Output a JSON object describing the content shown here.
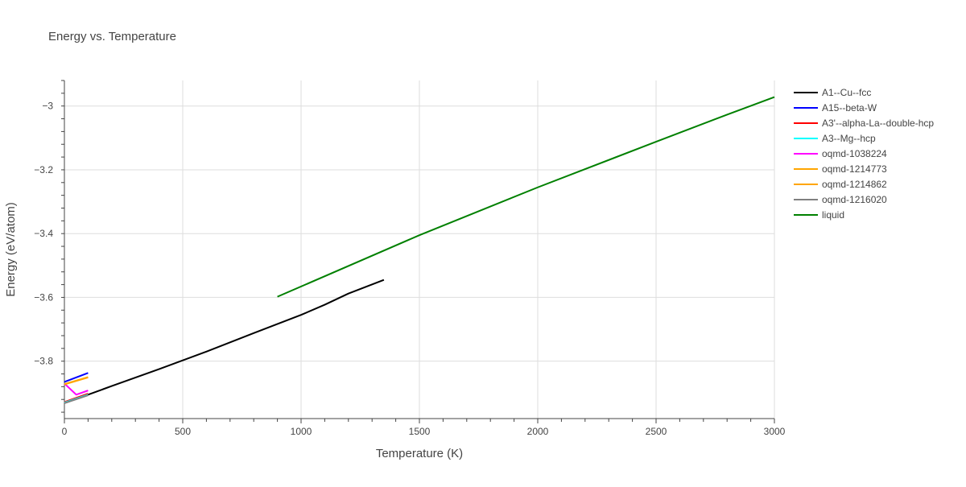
{
  "chart_data": {
    "type": "line",
    "title": "Energy vs. Temperature",
    "xlabel": "Temperature (K)",
    "ylabel": "Energy (eV/atom)",
    "xlim": [
      0,
      3000
    ],
    "ylim": [
      -3.98,
      -2.92
    ],
    "xticks": [
      0,
      500,
      1000,
      1500,
      2000,
      2500,
      3000
    ],
    "yticks": [
      -3.8,
      -3.6,
      -3.4,
      -3.2,
      -3.0
    ],
    "yticklabels": [
      "−3.8",
      "−3.6",
      "−3.4",
      "−3.2",
      "−3"
    ],
    "grid": true,
    "legend_position": "right",
    "series": [
      {
        "name": "A1--Cu--fcc",
        "color": "#000000",
        "x": [
          0,
          100,
          200,
          400,
          600,
          800,
          1000,
          1100,
          1200,
          1350
        ],
        "y": [
          -3.93,
          -3.905,
          -3.878,
          -3.825,
          -3.77,
          -3.712,
          -3.655,
          -3.623,
          -3.588,
          -3.545
        ]
      },
      {
        "name": "A15--beta-W",
        "color": "#0000ff",
        "x": [
          0,
          100
        ],
        "y": [
          -3.865,
          -3.837
        ]
      },
      {
        "name": "A3'--alpha-La--double-hcp",
        "color": "#ff0000",
        "x": [
          0,
          100
        ],
        "y": [
          -3.928,
          -3.902
        ]
      },
      {
        "name": "A3--Mg--hcp",
        "color": "#00ffff",
        "x": [
          0,
          100
        ],
        "y": [
          -3.93,
          -3.905
        ]
      },
      {
        "name": "oqmd-1038224",
        "color": "#ff00ff",
        "x": [
          0,
          50,
          100
        ],
        "y": [
          -3.87,
          -3.905,
          -3.892
        ]
      },
      {
        "name": "oqmd-1214773",
        "color": "#ffa500",
        "x": [
          0,
          100
        ],
        "y": [
          -3.872,
          -3.85
        ]
      },
      {
        "name": "oqmd-1214862",
        "color": "#ffa500",
        "x": [
          0,
          100
        ],
        "y": [
          -3.873,
          -3.851
        ]
      },
      {
        "name": "oqmd-1216020",
        "color": "#808080",
        "x": [
          0,
          100
        ],
        "y": [
          -3.932,
          -3.907
        ]
      },
      {
        "name": "liquid",
        "color": "#008000",
        "x": [
          900,
          1500,
          2000,
          2500,
          2800,
          3000
        ],
        "y": [
          -3.598,
          -3.405,
          -3.255,
          -3.112,
          -3.027,
          -2.972
        ]
      }
    ]
  }
}
